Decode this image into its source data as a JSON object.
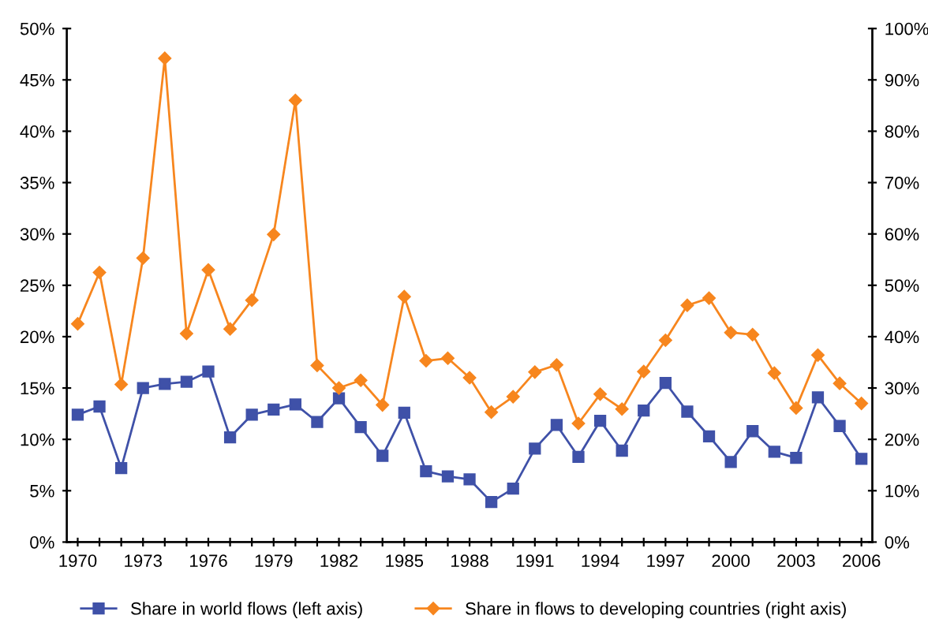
{
  "chart_data": {
    "type": "line",
    "x": [
      1970,
      1971,
      1972,
      1973,
      1974,
      1975,
      1976,
      1977,
      1978,
      1979,
      1980,
      1981,
      1982,
      1983,
      1984,
      1985,
      1986,
      1987,
      1988,
      1989,
      1990,
      1991,
      1992,
      1993,
      1994,
      1995,
      1996,
      1997,
      1998,
      1999,
      2000,
      2001,
      2002,
      2003,
      2004,
      2005,
      2006
    ],
    "series": [
      {
        "name": "Share in world flows (left axis)",
        "color": "#3f51a8",
        "marker": "square",
        "axis": "y",
        "values": [
          12.4,
          13.2,
          7.2,
          15.0,
          15.4,
          15.6,
          16.6,
          10.2,
          12.4,
          12.9,
          13.4,
          11.7,
          14.0,
          11.2,
          8.4,
          12.6,
          6.9,
          6.4,
          6.1,
          3.9,
          5.2,
          9.1,
          11.4,
          8.3,
          11.8,
          8.9,
          12.8,
          15.5,
          12.7,
          10.3,
          7.8,
          10.8,
          8.8,
          8.2,
          14.1,
          11.3,
          8.1
        ]
      },
      {
        "name": "Share in flows to developing countries (right axis)",
        "color": "#f7861e",
        "marker": "diamond",
        "axis": "y2",
        "values": [
          42.5,
          52.5,
          30.7,
          55.3,
          94.2,
          40.6,
          53.0,
          41.5,
          47.1,
          59.9,
          86.0,
          34.4,
          30.0,
          31.5,
          26.7,
          47.8,
          35.3,
          35.8,
          32.0,
          25.3,
          28.3,
          33.1,
          34.5,
          23.1,
          28.8,
          25.9,
          33.2,
          39.3,
          46.1,
          47.5,
          40.8,
          40.4,
          32.9,
          26.1,
          36.4,
          30.9,
          27.0
        ]
      }
    ],
    "xlim": [
      1969.5,
      2006.5
    ],
    "xticks": [
      1970,
      {
        "value": 1971,
        "label": null
      },
      {
        "value": 1972,
        "label": null
      },
      1973,
      {
        "value": 1974,
        "label": null
      },
      {
        "value": 1975,
        "label": null
      },
      1976,
      {
        "value": 1977,
        "label": null
      },
      {
        "value": 1978,
        "label": null
      },
      1979,
      {
        "value": 1980,
        "label": null
      },
      {
        "value": 1981,
        "label": null
      },
      1982,
      {
        "value": 1983,
        "label": null
      },
      {
        "value": 1984,
        "label": null
      },
      1985,
      {
        "value": 1986,
        "label": null
      },
      {
        "value": 1987,
        "label": null
      },
      1988,
      {
        "value": 1989,
        "label": null
      },
      {
        "value": 1990,
        "label": null
      },
      1991,
      {
        "value": 1992,
        "label": null
      },
      {
        "value": 1993,
        "label": null
      },
      1994,
      {
        "value": 1995,
        "label": null
      },
      {
        "value": 1996,
        "label": null
      },
      1997,
      {
        "value": 1998,
        "label": null
      },
      {
        "value": 1999,
        "label": null
      },
      2000,
      {
        "value": 2001,
        "label": null
      },
      {
        "value": 2002,
        "label": null
      },
      2003,
      {
        "value": 2004,
        "label": null
      },
      {
        "value": 2005,
        "label": null
      },
      2006
    ],
    "ylim": [
      0,
      50
    ],
    "yticks": [
      {
        "value": 0,
        "label": "0%"
      },
      {
        "value": 5,
        "label": "5%"
      },
      {
        "value": 10,
        "label": "10%"
      },
      {
        "value": 15,
        "label": "15%"
      },
      {
        "value": 20,
        "label": "20%"
      },
      {
        "value": 25,
        "label": "25%"
      },
      {
        "value": 30,
        "label": "30%"
      },
      {
        "value": 35,
        "label": "35%"
      },
      {
        "value": 40,
        "label": "40%"
      },
      {
        "value": 45,
        "label": "45%"
      },
      {
        "value": 50,
        "label": "50%"
      }
    ],
    "y2lim": [
      0,
      100
    ],
    "y2ticks": [
      {
        "value": 0,
        "label": "0%"
      },
      {
        "value": 10,
        "label": "10%"
      },
      {
        "value": 20,
        "label": "20%"
      },
      {
        "value": 30,
        "label": "30%"
      },
      {
        "value": 40,
        "label": "40%"
      },
      {
        "value": 50,
        "label": "50%"
      },
      {
        "value": 60,
        "label": "60%"
      },
      {
        "value": 70,
        "label": "70%"
      },
      {
        "value": 80,
        "label": "80%"
      },
      {
        "value": 90,
        "label": "90%"
      },
      {
        "value": 100,
        "label": "100%"
      }
    ],
    "grid": false,
    "legend": "bottom",
    "line_style": "solid"
  }
}
